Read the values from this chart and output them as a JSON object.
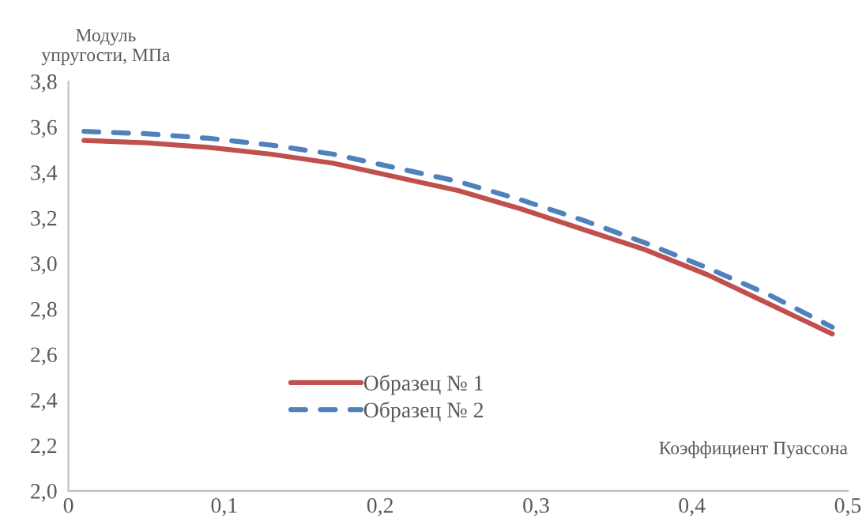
{
  "chart_data": {
    "type": "line",
    "xlabel": "Коэффициент Пуассона",
    "ylabel": "Модуль\nупругости, МПа",
    "x": [
      0.01,
      0.05,
      0.09,
      0.13,
      0.17,
      0.21,
      0.25,
      0.29,
      0.33,
      0.37,
      0.41,
      0.45,
      0.49
    ],
    "series": [
      {
        "name": "Образец № 1",
        "color": "#c0504d",
        "line_style": "solid",
        "values": [
          3.54,
          3.53,
          3.51,
          3.48,
          3.44,
          3.38,
          3.32,
          3.24,
          3.15,
          3.06,
          2.95,
          2.82,
          2.69
        ]
      },
      {
        "name": "Образец № 2",
        "color": "#4f81bd",
        "line_style": "dashed",
        "values": [
          3.58,
          3.57,
          3.55,
          3.52,
          3.48,
          3.42,
          3.36,
          3.28,
          3.19,
          3.09,
          2.98,
          2.86,
          2.72
        ]
      }
    ],
    "xlim": [
      0,
      0.5
    ],
    "xticks": [
      0,
      {
        "value": 0.1,
        "label": "0,1"
      },
      {
        "value": 0.2,
        "label": "0,2"
      },
      {
        "value": 0.3,
        "label": "0,3"
      },
      {
        "value": 0.4,
        "label": "0,4"
      },
      {
        "value": 0.5,
        "label": "0,5"
      }
    ],
    "ylim": [
      2.0,
      3.8
    ],
    "yticks": [
      {
        "value": 2.0,
        "label": "2,0"
      },
      {
        "value": 2.2,
        "label": "2,2"
      },
      {
        "value": 2.4,
        "label": "2,4"
      },
      {
        "value": 2.6,
        "label": "2,6"
      },
      {
        "value": 2.8,
        "label": "2,8"
      },
      {
        "value": 3.0,
        "label": "3,0"
      },
      {
        "value": 3.2,
        "label": "3,2"
      },
      {
        "value": 3.4,
        "label": "3,4"
      },
      {
        "value": 3.6,
        "label": "3,6"
      },
      {
        "value": 3.8,
        "label": "3,8"
      }
    ],
    "grid": false,
    "legend": "bottom left",
    "marker": "none"
  }
}
